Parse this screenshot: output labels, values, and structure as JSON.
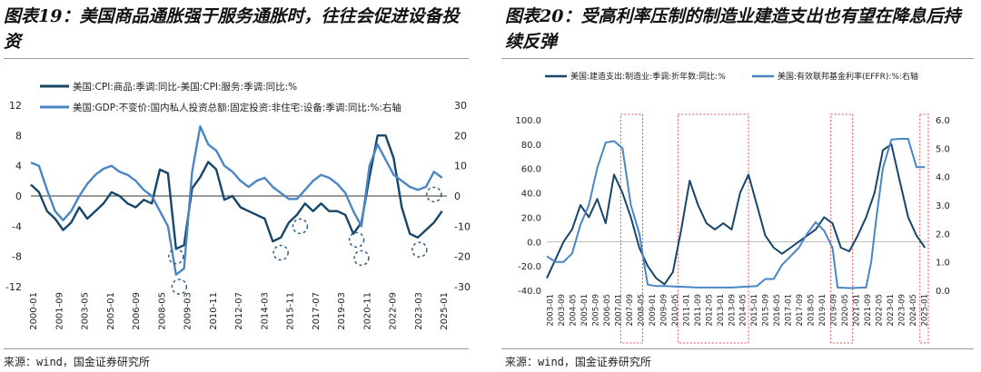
{
  "left": {
    "title": "图表19：美国商品通胀强于服务通胀时，往往会促进设备投资",
    "source": "来源：wind，国金证券研究所",
    "chart_data": {
      "type": "line",
      "legend": [
        "美国:CPI:商品:季调:同比-美国:CPI:服务:季调:同比:%",
        "美国:GDP:不变价:国内私人投资总额:固定投资:非住宅:设备:季调:同比:%:右轴"
      ],
      "legend_position": "top-left",
      "x_tick_labels": [
        "2000-01",
        "2001-09",
        "2003-05",
        "2005-01",
        "2006-09",
        "2008-05",
        "2009-03",
        "2010-11",
        "2012-07",
        "2014-03",
        "2015-11",
        "2017-07",
        "2019-03",
        "2020-11",
        "2022-09",
        "2023-03",
        "2025-01"
      ],
      "left_axis": {
        "ylim": [
          -12,
          12
        ],
        "ticks": [
          -12,
          -8,
          -4,
          0,
          4,
          8,
          12
        ]
      },
      "right_axis": {
        "ylim": [
          -30,
          30
        ],
        "ticks": [
          -30,
          -20,
          -10,
          0,
          10,
          20,
          30
        ]
      },
      "grid": false,
      "series": [
        {
          "name": "美国:CPI:商品:季调:同比-美国:CPI:服务:季调:同比:%",
          "axis": "left",
          "color": "#17466b",
          "x": [
            2000.0,
            2000.5,
            2001.0,
            2001.5,
            2002.0,
            2002.5,
            2003.0,
            2003.5,
            2004.0,
            2004.5,
            2005.0,
            2005.5,
            2006.0,
            2006.5,
            2007.0,
            2007.5,
            2008.0,
            2008.5,
            2009.0,
            2009.5,
            2010.0,
            2010.5,
            2011.0,
            2011.5,
            2012.0,
            2012.5,
            2013.0,
            2013.5,
            2014.0,
            2014.5,
            2015.0,
            2015.5,
            2016.0,
            2016.5,
            2017.0,
            2017.5,
            2018.0,
            2018.5,
            2019.0,
            2019.5,
            2020.0,
            2020.5,
            2021.0,
            2021.5,
            2022.0,
            2022.5,
            2023.0,
            2023.5,
            2024.0,
            2024.5,
            2025.0,
            2025.5
          ],
          "values": [
            1.5,
            0.5,
            -2.0,
            -3.0,
            -4.5,
            -3.5,
            -1.5,
            -3.0,
            -2.0,
            -1.0,
            0.5,
            0.0,
            -1.0,
            -1.5,
            -0.5,
            -1.0,
            3.5,
            3.0,
            -7.0,
            -6.5,
            1.0,
            2.5,
            4.5,
            3.5,
            -0.5,
            0.0,
            -1.5,
            -2.0,
            -2.5,
            -3.0,
            -6.0,
            -5.5,
            -3.5,
            -2.5,
            -1.0,
            -2.0,
            -1.0,
            -2.0,
            -2.0,
            -2.5,
            -5.0,
            -3.5,
            2.5,
            8.0,
            8.0,
            5.0,
            -1.5,
            -5.0,
            -5.5,
            -4.5,
            -3.5,
            -2.0
          ]
        },
        {
          "name": "美国:GDP:不变价:国内私人投资总额:固定投资:非住宅:设备:季调:同比:%:右轴",
          "axis": "right",
          "color": "#4a86c5",
          "x": [
            2000.0,
            2000.5,
            2001.0,
            2001.5,
            2002.0,
            2002.5,
            2003.0,
            2003.5,
            2004.0,
            2004.5,
            2005.0,
            2005.5,
            2006.0,
            2006.5,
            2007.0,
            2007.5,
            2008.0,
            2008.5,
            2009.0,
            2009.5,
            2010.0,
            2010.5,
            2011.0,
            2011.5,
            2012.0,
            2012.5,
            2013.0,
            2013.5,
            2014.0,
            2014.5,
            2015.0,
            2015.5,
            2016.0,
            2016.5,
            2017.0,
            2017.5,
            2018.0,
            2018.5,
            2019.0,
            2019.5,
            2020.0,
            2020.5,
            2021.0,
            2021.5,
            2022.0,
            2022.5,
            2023.0,
            2023.5,
            2024.0,
            2024.5,
            2025.0,
            2025.5
          ],
          "values": [
            11,
            10,
            2,
            -5,
            -8,
            -5,
            0,
            4,
            7,
            9,
            10,
            8,
            7,
            5,
            2,
            0,
            -5,
            -10,
            -26,
            -24,
            8,
            23,
            17,
            15,
            10,
            8,
            5,
            3,
            5,
            6,
            3,
            1,
            -1,
            -1,
            2,
            5,
            7,
            6,
            4,
            1,
            -5,
            -10,
            10,
            17,
            12,
            7,
            5,
            3,
            2,
            3,
            8,
            6
          ]
        }
      ],
      "circled_points": [
        {
          "x": 2009.0,
          "y": -8,
          "axis": "left"
        },
        {
          "x": 2009.2,
          "y": -12,
          "axis": "left"
        },
        {
          "x": 2015.5,
          "y": -7.5,
          "axis": "left"
        },
        {
          "x": 2016.7,
          "y": -4,
          "axis": "left"
        },
        {
          "x": 2020.2,
          "y": -5.8,
          "axis": "left"
        },
        {
          "x": 2020.5,
          "y": -8.2,
          "axis": "left"
        },
        {
          "x": 2024.1,
          "y": -7.1,
          "axis": "left"
        },
        {
          "x": 2025.0,
          "y": 0.2,
          "axis": "left"
        }
      ]
    }
  },
  "right": {
    "title": "图表20：受高利率压制的制造业建造支出也有望在降息后持续反弹",
    "source": "来源：wind，国金证券研究所",
    "chart_data": {
      "type": "line",
      "legend": [
        "美国:建造支出:制造业:季调:折年数:同比:%",
        "美国:有效联邦基金利率(EFFR):%:右轴"
      ],
      "legend_position": "top",
      "x_tick_labels": [
        "2003-01",
        "2003-09",
        "2004-05",
        "2005-01",
        "2005-09",
        "2006-05",
        "2007-01",
        "2007-09",
        "2008-05",
        "2009-01",
        "2009-09",
        "2010-05",
        "2011-01",
        "2011-09",
        "2012-05",
        "2013-01",
        "2013-09",
        "2014-05",
        "2015-01",
        "2015-09",
        "2016-05",
        "2017-01",
        "2017-09",
        "2018-05",
        "2019-01",
        "2019-09",
        "2020-05",
        "2021-01",
        "2021-09",
        "2022-05",
        "2023-01",
        "2023-09",
        "2024-05",
        "2025-01"
      ],
      "left_axis": {
        "ylim": [
          -40,
          100
        ],
        "ticks": [
          "-40.0",
          "-20.0",
          "0.0",
          "20.0",
          "40.0",
          "60.0",
          "80.0",
          "100.0"
        ]
      },
      "right_axis": {
        "ylim": [
          0,
          6
        ],
        "ticks": [
          "0.0",
          "1.0",
          "2.0",
          "3.0",
          "4.0",
          "5.0",
          "6.0"
        ]
      },
      "grid": false,
      "series": [
        {
          "name": "美国:建造支出:制造业:季调:折年数:同比:%",
          "axis": "left",
          "color": "#17466b",
          "x": [
            2003.0,
            2003.5,
            2004.0,
            2004.5,
            2005.0,
            2005.5,
            2006.0,
            2006.5,
            2007.0,
            2007.5,
            2008.0,
            2008.5,
            2009.0,
            2009.5,
            2010.0,
            2010.5,
            2011.0,
            2011.5,
            2012.0,
            2012.5,
            2013.0,
            2013.5,
            2014.0,
            2014.5,
            2015.0,
            2015.5,
            2016.0,
            2016.5,
            2017.0,
            2017.5,
            2018.0,
            2018.5,
            2019.0,
            2019.5,
            2020.0,
            2020.5,
            2021.0,
            2021.5,
            2022.0,
            2022.5,
            2023.0,
            2023.5,
            2024.0,
            2024.5,
            2025.0,
            2025.5
          ],
          "values": [
            -30,
            -15,
            0,
            10,
            30,
            20,
            35,
            15,
            55,
            40,
            20,
            -5,
            -20,
            -30,
            -35,
            -25,
            10,
            50,
            30,
            15,
            10,
            15,
            10,
            40,
            55,
            30,
            5,
            -5,
            -10,
            -5,
            0,
            5,
            10,
            20,
            15,
            -5,
            -8,
            5,
            20,
            40,
            75,
            80,
            50,
            20,
            5,
            -5
          ]
        },
        {
          "name": "美国:有效联邦基金利率(EFFR):%:右轴",
          "axis": "right",
          "color": "#4a86c5",
          "x": [
            2003.0,
            2003.5,
            2004.0,
            2004.5,
            2005.0,
            2005.5,
            2006.0,
            2006.5,
            2007.0,
            2007.5,
            2008.0,
            2008.5,
            2009.0,
            2009.5,
            2010.0,
            2012.0,
            2014.0,
            2015.5,
            2016.0,
            2016.5,
            2017.0,
            2017.5,
            2018.0,
            2018.5,
            2019.0,
            2019.5,
            2020.0,
            2020.3,
            2021.0,
            2022.0,
            2022.3,
            2022.6,
            2023.0,
            2023.5,
            2024.0,
            2024.5,
            2025.0,
            2025.5
          ],
          "values": [
            1.2,
            1.0,
            1.0,
            1.3,
            2.3,
            3.0,
            4.3,
            5.2,
            5.25,
            5.0,
            3.0,
            2.0,
            0.2,
            0.15,
            0.15,
            0.1,
            0.1,
            0.15,
            0.4,
            0.4,
            0.9,
            1.2,
            1.5,
            2.0,
            2.4,
            2.1,
            1.5,
            0.1,
            0.08,
            0.1,
            1.0,
            2.5,
            4.3,
            5.3,
            5.33,
            5.33,
            4.33,
            4.33
          ]
        }
      ],
      "highlight_periods": [
        {
          "from": 2007.4,
          "to": 2008.7
        },
        {
          "from": 2010.8,
          "to": 2015.0
        },
        {
          "from": 2019.9,
          "to": 2021.2
        },
        {
          "from": 2025.2,
          "to": 2025.7
        }
      ]
    }
  }
}
